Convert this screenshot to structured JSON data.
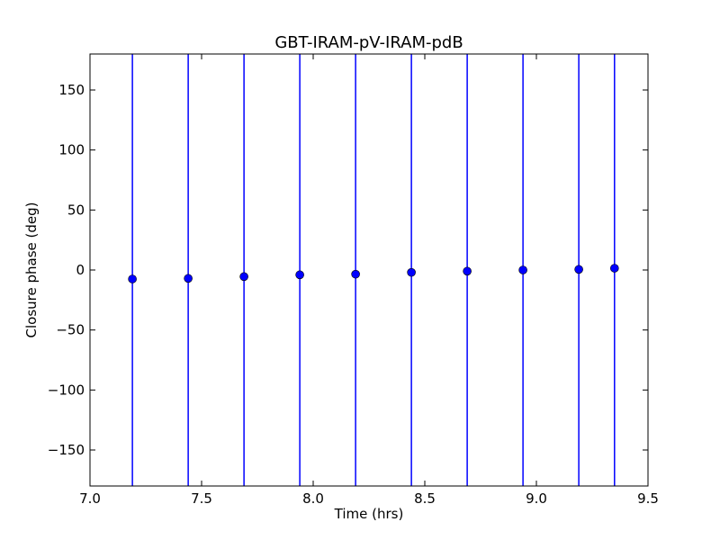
{
  "chart_data": {
    "type": "scatter",
    "title": "GBT-IRAM-pV-IRAM-pdB",
    "xlabel": "Time (hrs)",
    "ylabel": "Closure phase (deg)",
    "xlim": [
      7.0,
      9.5
    ],
    "ylim": [
      -180,
      180
    ],
    "xticks": [
      7.0,
      7.5,
      8.0,
      8.5,
      9.0,
      9.5
    ],
    "xtick_labels": [
      "7.0",
      "7.5",
      "8.0",
      "8.5",
      "9.0",
      "9.5"
    ],
    "yticks": [
      -150,
      -100,
      -50,
      0,
      50,
      100,
      150
    ],
    "ytick_labels": [
      "−150",
      "−100",
      "−50",
      "0",
      "50",
      "100",
      "150"
    ],
    "grid": false,
    "marker_color": "#0000ff",
    "errorbar_color": "#0000ff",
    "series": [
      {
        "x": [
          7.19,
          7.44,
          7.69,
          7.94,
          8.19,
          8.44,
          8.69,
          8.94,
          9.19,
          9.35
        ],
        "y": [
          -7.5,
          -7.0,
          -5.5,
          -4.0,
          -3.5,
          -2.0,
          -1.0,
          0.0,
          0.5,
          1.5
        ],
        "yerr_low": [
          -180,
          -180,
          -180,
          -180,
          -180,
          -180,
          -180,
          -180,
          -180,
          -180
        ],
        "yerr_high": [
          180,
          180,
          180,
          180,
          180,
          180,
          180,
          180,
          180,
          180
        ]
      }
    ]
  }
}
